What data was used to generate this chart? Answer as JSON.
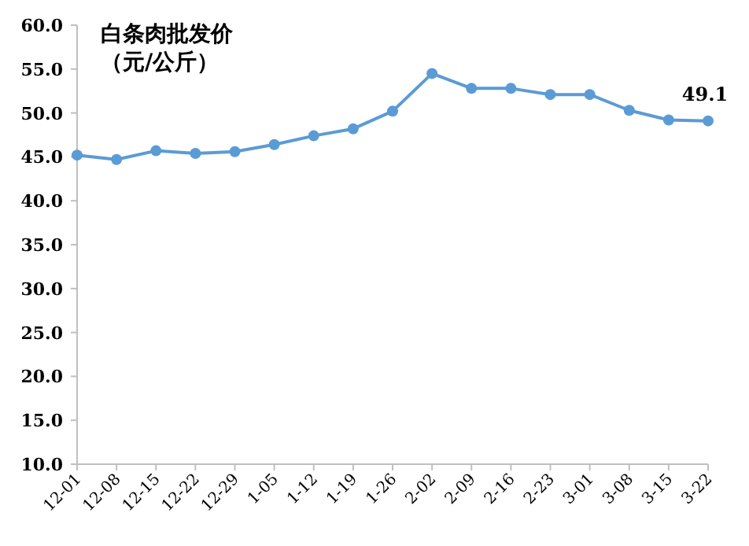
{
  "chart_data": {
    "type": "line",
    "title": "白条肉批发价",
    "subtitle": "（元/公斤）",
    "categories": [
      "12-01",
      "12-08",
      "12-15",
      "12-22",
      "12-29",
      "1-05",
      "1-12",
      "1-19",
      "1-26",
      "2-02",
      "2-09",
      "2-16",
      "2-23",
      "3-01",
      "3-08",
      "3-15",
      "3-22"
    ],
    "series": [
      {
        "color": "#5b9bd5",
        "values": [
          45.2,
          44.7,
          45.7,
          45.4,
          45.6,
          46.4,
          47.4,
          48.2,
          50.2,
          54.5,
          52.8,
          52.8,
          52.1,
          52.1,
          50.3,
          49.2,
          49.1
        ],
        "value_labels": [
          null,
          null,
          null,
          null,
          null,
          null,
          null,
          null,
          null,
          null,
          null,
          null,
          null,
          null,
          null,
          null,
          "49.1"
        ]
      }
    ],
    "ylim": [
      10,
      60
    ],
    "yticks": [
      {
        "value": 10,
        "label": "10.0"
      },
      {
        "value": 15,
        "label": "15.0"
      },
      {
        "value": 20,
        "label": "20.0"
      },
      {
        "value": 25,
        "label": "25.0"
      },
      {
        "value": 30,
        "label": "30.0"
      },
      {
        "value": 35,
        "label": "35.0"
      },
      {
        "value": 40,
        "label": "40.0"
      },
      {
        "value": 45,
        "label": "45.0"
      },
      {
        "value": 50,
        "label": "50.0"
      },
      {
        "value": 55,
        "label": "55.0"
      },
      {
        "value": 60,
        "label": "60.0"
      }
    ],
    "grid": false,
    "marker": "circle",
    "line_style": "solid"
  }
}
